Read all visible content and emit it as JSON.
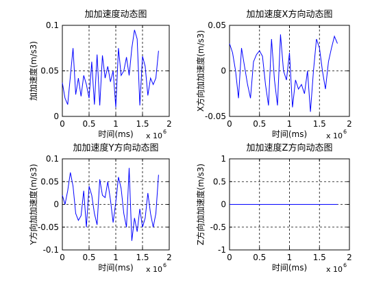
{
  "chart_data": [
    {
      "type": "line",
      "title": "加加速度动态图",
      "xlabel": "时间(ms)",
      "ylabel": "加加速度(m/s3)",
      "x_multiplier": "x 10",
      "x_multiplier_exp": "6",
      "xlim": [
        0,
        2
      ],
      "ylim": [
        0,
        0.1
      ],
      "xticks": [
        "0",
        "0.5",
        "1",
        "1.5",
        "2"
      ],
      "yticks": [
        "0",
        "0.05",
        "0.1"
      ],
      "grid": true,
      "line_color": "#0000ff",
      "x": [
        0.0,
        0.05,
        0.1,
        0.2,
        0.25,
        0.3,
        0.35,
        0.4,
        0.45,
        0.5,
        0.55,
        0.6,
        0.65,
        0.7,
        0.75,
        0.8,
        0.85,
        0.9,
        0.95,
        1.0,
        1.05,
        1.1,
        1.15,
        1.2,
        1.25,
        1.3,
        1.35,
        1.4,
        1.45,
        1.5,
        1.55,
        1.6,
        1.65,
        1.7,
        1.75,
        1.8
      ],
      "y": [
        0.037,
        0.02,
        0.013,
        0.075,
        0.024,
        0.042,
        0.022,
        0.045,
        0.035,
        0.02,
        0.06,
        0.013,
        0.068,
        0.012,
        0.067,
        0.042,
        0.055,
        0.038,
        0.05,
        0.01,
        0.075,
        0.045,
        0.05,
        0.065,
        0.045,
        0.075,
        0.095,
        0.085,
        0.012,
        0.066,
        0.055,
        0.023,
        0.042,
        0.035,
        0.042,
        0.072
      ]
    },
    {
      "type": "line",
      "title": "加加速度X方向动态图",
      "xlabel": "时间(ms)",
      "ylabel": "X方向加加速度(m/s3)",
      "x_multiplier": "x 10",
      "x_multiplier_exp": "6",
      "xlim": [
        0,
        2
      ],
      "ylim": [
        -0.05,
        0.05
      ],
      "xticks": [
        "0",
        "0.5",
        "1",
        "1.5",
        "2"
      ],
      "yticks": [
        "-0.05",
        "0",
        "0.05"
      ],
      "grid": true,
      "line_color": "#0000ff",
      "x": [
        0.0,
        0.05,
        0.1,
        0.15,
        0.2,
        0.25,
        0.3,
        0.35,
        0.4,
        0.45,
        0.5,
        0.55,
        0.6,
        0.65,
        0.7,
        0.75,
        0.8,
        0.85,
        0.9,
        0.95,
        1.0,
        1.05,
        1.1,
        1.15,
        1.2,
        1.25,
        1.3,
        1.35,
        1.4,
        1.45,
        1.5,
        1.55,
        1.6,
        1.65,
        1.7,
        1.75,
        1.8
      ],
      "y": [
        0.03,
        0.02,
        0.0,
        -0.03,
        0.025,
        0.005,
        -0.015,
        -0.03,
        0.01,
        0.018,
        0.022,
        0.016,
        -0.015,
        -0.038,
        0.035,
        -0.01,
        -0.038,
        0.04,
        0.0,
        -0.01,
        0.02,
        -0.04,
        -0.01,
        -0.02,
        -0.015,
        -0.025,
        0.0,
        -0.045,
        0.0,
        0.035,
        0.025,
        0.0,
        -0.02,
        0.01,
        0.025,
        0.038,
        0.03
      ]
    },
    {
      "type": "line",
      "title": "加加速度Y方向动态图",
      "xlabel": "时间(ms)",
      "ylabel": "Y方向加加速度(m/s3)",
      "x_multiplier": "x 10",
      "x_multiplier_exp": "6",
      "xlim": [
        0,
        2
      ],
      "ylim": [
        -0.1,
        0.1
      ],
      "xticks": [
        "0",
        "0.5",
        "1",
        "1.5",
        "2"
      ],
      "yticks": [
        "-0.1",
        "-0.05",
        "0",
        "0.05",
        "0.1"
      ],
      "grid": true,
      "line_color": "#0000ff",
      "x": [
        0.0,
        0.05,
        0.1,
        0.15,
        0.2,
        0.25,
        0.3,
        0.35,
        0.4,
        0.45,
        0.5,
        0.55,
        0.6,
        0.65,
        0.7,
        0.75,
        0.8,
        0.85,
        0.9,
        0.95,
        1.0,
        1.05,
        1.1,
        1.15,
        1.2,
        1.25,
        1.3,
        1.35,
        1.4,
        1.45,
        1.5,
        1.55,
        1.6,
        1.65,
        1.7,
        1.75,
        1.8
      ],
      "y": [
        0.02,
        0.0,
        0.03,
        0.07,
        0.04,
        -0.02,
        -0.035,
        -0.025,
        0.03,
        -0.05,
        0.04,
        0.02,
        -0.02,
        -0.045,
        0.055,
        0.02,
        0.015,
        0.05,
        0.01,
        -0.04,
        0.005,
        0.06,
        0.035,
        -0.02,
        -0.05,
        0.08,
        -0.08,
        -0.03,
        -0.06,
        -0.01,
        -0.05,
        -0.03,
        0.025,
        -0.02,
        -0.05,
        -0.02,
        0.065
      ]
    },
    {
      "type": "line",
      "title": "加加速度Z方向动态图",
      "xlabel": "时间(ms)",
      "ylabel": "Z方向加加速度(m/s3)",
      "x_multiplier": "x 10",
      "x_multiplier_exp": "6",
      "xlim": [
        0,
        2
      ],
      "ylim": [
        -1,
        1
      ],
      "xticks": [
        "0",
        "0.5",
        "1",
        "1.5",
        "2"
      ],
      "yticks": [
        "-1",
        "-0.5",
        "0",
        "0.5",
        "1"
      ],
      "grid": true,
      "line_color": "#0000ff",
      "x": [
        0.0,
        1.8
      ],
      "y": [
        0.0,
        0.0
      ]
    }
  ]
}
